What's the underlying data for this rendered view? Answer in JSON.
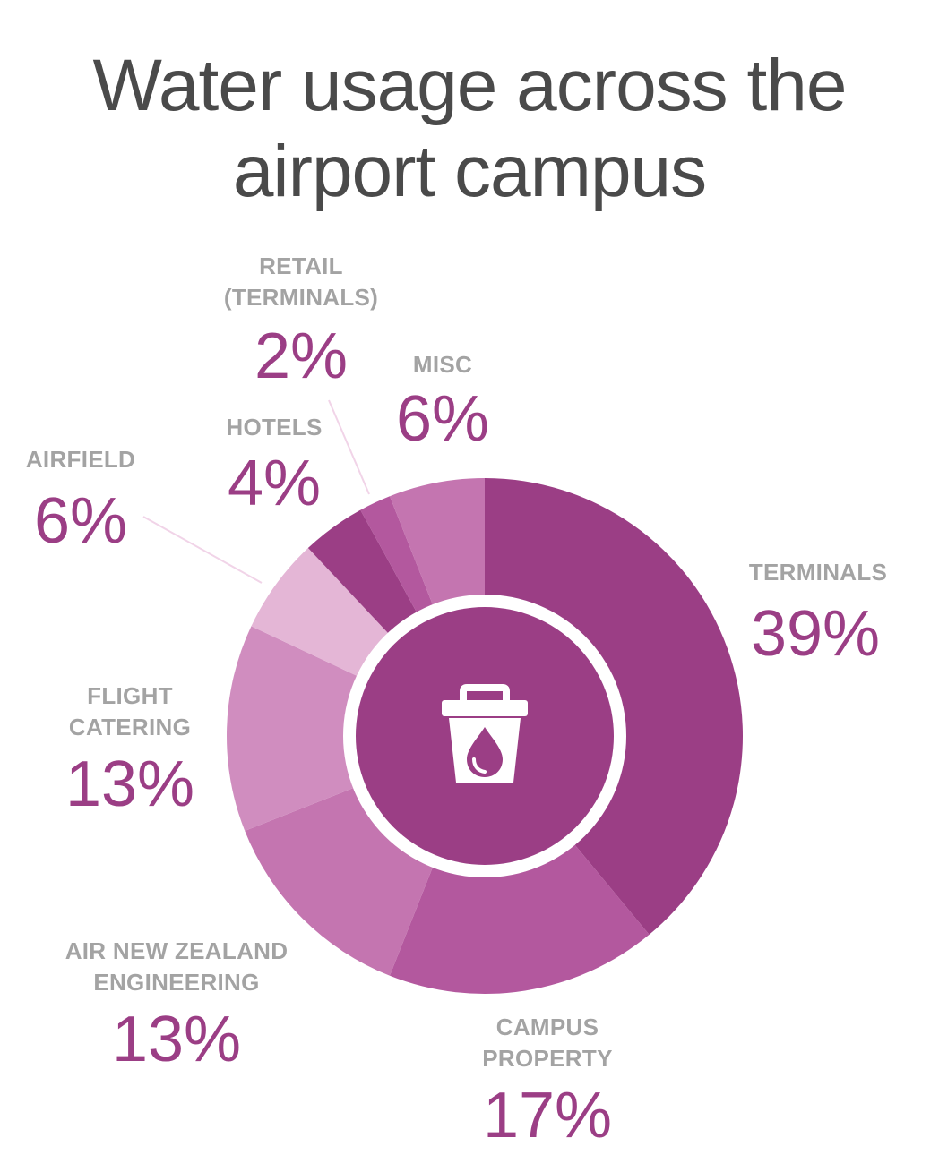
{
  "title": {
    "line1": "Water usage across the",
    "line2": "airport campus"
  },
  "center_icon": "bucket-water-drop-icon",
  "colors": {
    "label_text": "#a3a3a3",
    "percent_text": "#9b3e85",
    "center_fill": "#9b3e85",
    "center_ring": "#ffffff"
  },
  "chart_data": {
    "type": "pie",
    "style": "donut",
    "title": "Water usage across the airport campus",
    "slices": [
      {
        "key": "terminals",
        "label_lines": [
          "TERMINALS"
        ],
        "value": 39,
        "display": "39%",
        "color": "#9b3e85"
      },
      {
        "key": "campus_property",
        "label_lines": [
          "CAMPUS",
          "PROPERTY"
        ],
        "value": 17,
        "display": "17%",
        "color": "#b3589e"
      },
      {
        "key": "air_nz_engineering",
        "label_lines": [
          "AIR NEW ZEALAND",
          "ENGINEERING"
        ],
        "value": 13,
        "display": "13%",
        "color": "#c475b0"
      },
      {
        "key": "flight_catering",
        "label_lines": [
          "FLIGHT",
          "CATERING"
        ],
        "value": 13,
        "display": "13%",
        "color": "#d08dbf"
      },
      {
        "key": "airfield",
        "label_lines": [
          "AIRFIELD"
        ],
        "value": 6,
        "display": "6%",
        "color": "#e4b6d6"
      },
      {
        "key": "hotels",
        "label_lines": [
          "HOTELS"
        ],
        "value": 4,
        "display": "4%",
        "color": "#9b3e85"
      },
      {
        "key": "retail_terminals",
        "label_lines": [
          "RETAIL",
          "(TERMINALS)"
        ],
        "value": 2,
        "display": "2%",
        "color": "#b3589e"
      },
      {
        "key": "misc",
        "label_lines": [
          "MISC"
        ],
        "value": 6,
        "display": "6%",
        "color": "#c475b0"
      }
    ]
  }
}
